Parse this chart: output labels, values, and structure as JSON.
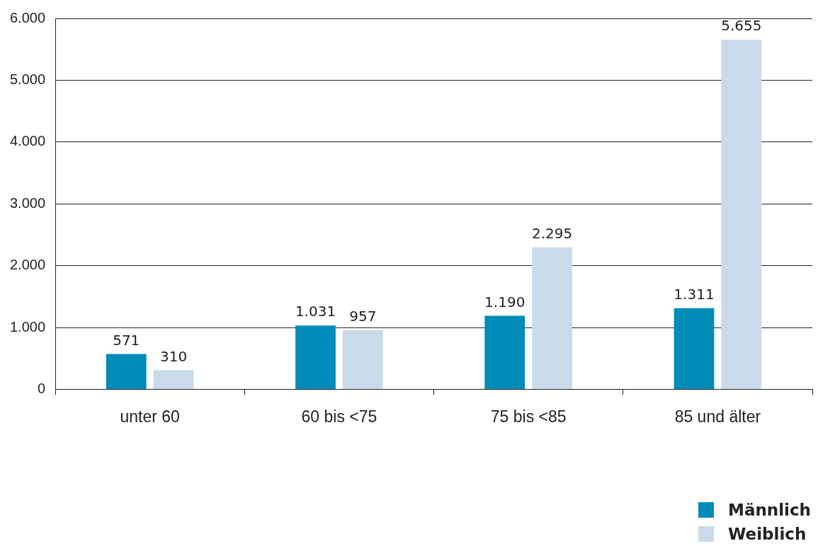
{
  "chart_data": {
    "type": "bar",
    "categories": [
      "unter 60",
      "60 bis <75",
      "75 bis <85",
      "85 und älter"
    ],
    "series": [
      {
        "name": "Männlich",
        "color": "#008bb9",
        "values": [
          571,
          1031,
          1190,
          1311
        ],
        "value_labels": [
          "571",
          "1.031",
          "1.190",
          "1.311"
        ]
      },
      {
        "name": "Weiblich",
        "color": "#c9dbea",
        "values": [
          310,
          957,
          2295,
          5655
        ],
        "value_labels": [
          "310",
          "957",
          "2.295",
          "5.655"
        ]
      }
    ],
    "ylim": [
      0,
      6000
    ],
    "yticks": [
      {
        "value": 0,
        "label": "0"
      },
      {
        "value": 1000,
        "label": "1.000"
      },
      {
        "value": 2000,
        "label": "2.000"
      },
      {
        "value": 3000,
        "label": "3.000"
      },
      {
        "value": 4000,
        "label": "4.000"
      },
      {
        "value": 5000,
        "label": "5.000"
      },
      {
        "value": 6000,
        "label": "6.000"
      }
    ],
    "grid": "y",
    "legend": "bottom right"
  }
}
